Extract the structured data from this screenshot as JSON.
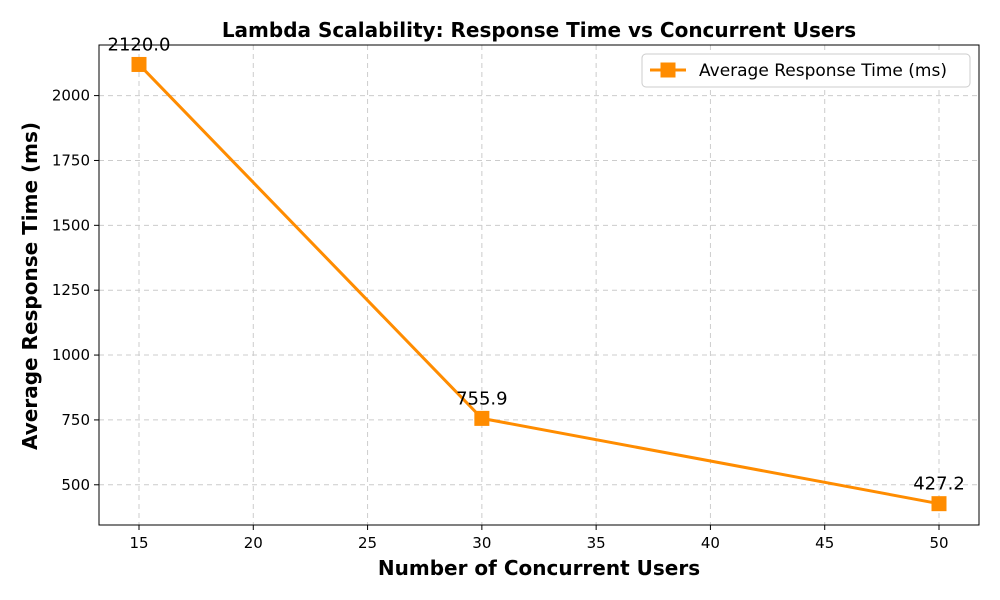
{
  "chart_data": {
    "type": "line",
    "title": "Lambda Scalability: Response Time vs Concurrent Users",
    "xlabel": "Number of Concurrent Users",
    "ylabel": "Average Response Time (ms)",
    "x": [
      15,
      30,
      50
    ],
    "series": [
      {
        "name": "Average Response Time (ms)",
        "values": [
          2120.0,
          755.9,
          427.2
        ],
        "data_labels": [
          "2120.0",
          "755.9",
          "427.2"
        ],
        "color": "#ff8c00",
        "marker": "square"
      }
    ],
    "xlim": [
      13.25,
      51.75
    ],
    "ylim": [
      345,
      2195
    ],
    "xticks": [
      15,
      20,
      25,
      30,
      35,
      40,
      45,
      50
    ],
    "yticks": [
      500,
      750,
      1000,
      1250,
      1500,
      1750,
      2000
    ],
    "grid": true,
    "grid_style": "dashed",
    "legend_position": "top-right"
  }
}
